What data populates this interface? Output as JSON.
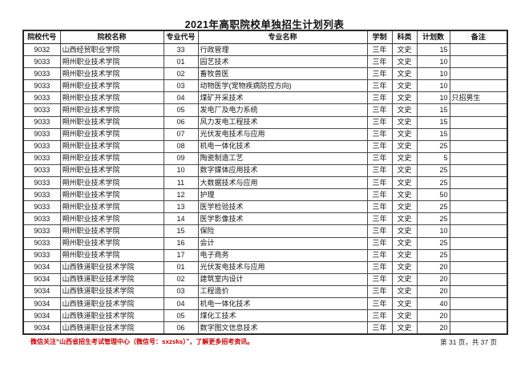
{
  "page": {
    "title": "2021年高职院校单独招生计划列表",
    "footer_note": "微信关注“山西省招生考试管理中心（微信号：sxzsks）”，了解更多招考资讯。",
    "page_indicator": "第 31 页，共 37 页",
    "accent_color": "#cc0000"
  },
  "table": {
    "columns": [
      "院校代号",
      "院校名称",
      "专业代号",
      "专业名称",
      "学制",
      "科类",
      "计划数",
      "备注"
    ],
    "rows": [
      [
        "9032",
        "山西经贸职业学院",
        "33",
        "行政管理",
        "三年",
        "文史",
        "15",
        ""
      ],
      [
        "9033",
        "朔州职业技术学院",
        "01",
        "园艺技术",
        "三年",
        "文史",
        "10",
        ""
      ],
      [
        "9033",
        "朔州职业技术学院",
        "02",
        "畜牧兽医",
        "三年",
        "文史",
        "10",
        ""
      ],
      [
        "9033",
        "朔州职业技术学院",
        "03",
        "动物医学(宠物疾病防控方向)",
        "三年",
        "文史",
        "10",
        ""
      ],
      [
        "9033",
        "朔州职业技术学院",
        "04",
        "煤矿开采技术",
        "三年",
        "文史",
        "10",
        "只招男生"
      ],
      [
        "9033",
        "朔州职业技术学院",
        "05",
        "发电厂及电力系统",
        "三年",
        "文史",
        "15",
        ""
      ],
      [
        "9033",
        "朔州职业技术学院",
        "06",
        "风力发电工程技术",
        "三年",
        "文史",
        "15",
        ""
      ],
      [
        "9033",
        "朔州职业技术学院",
        "07",
        "光伏发电技术与应用",
        "三年",
        "文史",
        "15",
        ""
      ],
      [
        "9033",
        "朔州职业技术学院",
        "08",
        "机电一体化技术",
        "三年",
        "文史",
        "25",
        ""
      ],
      [
        "9033",
        "朔州职业技术学院",
        "09",
        "陶瓷制造工艺",
        "三年",
        "文史",
        "5",
        ""
      ],
      [
        "9033",
        "朔州职业技术学院",
        "10",
        "数字媒体应用技术",
        "三年",
        "文史",
        "25",
        ""
      ],
      [
        "9033",
        "朔州职业技术学院",
        "11",
        "大数据技术与应用",
        "三年",
        "文史",
        "25",
        ""
      ],
      [
        "9033",
        "朔州职业技术学院",
        "12",
        "护理",
        "三年",
        "文史",
        "50",
        ""
      ],
      [
        "9033",
        "朔州职业技术学院",
        "13",
        "医学检验技术",
        "三年",
        "文史",
        "25",
        ""
      ],
      [
        "9033",
        "朔州职业技术学院",
        "14",
        "医学影像技术",
        "三年",
        "文史",
        "25",
        ""
      ],
      [
        "9033",
        "朔州职业技术学院",
        "15",
        "保险",
        "三年",
        "文史",
        "10",
        ""
      ],
      [
        "9033",
        "朔州职业技术学院",
        "16",
        "会计",
        "三年",
        "文史",
        "25",
        ""
      ],
      [
        "9033",
        "朔州职业技术学院",
        "17",
        "电子商务",
        "三年",
        "文史",
        "25",
        ""
      ],
      [
        "9034",
        "山西铁道职业技术学院",
        "01",
        "光伏发电技术与应用",
        "三年",
        "文史",
        "20",
        ""
      ],
      [
        "9034",
        "山西铁道职业技术学院",
        "02",
        "建筑室内设计",
        "三年",
        "文史",
        "20",
        ""
      ],
      [
        "9034",
        "山西铁道职业技术学院",
        "03",
        "工程造价",
        "三年",
        "文史",
        "20",
        ""
      ],
      [
        "9034",
        "山西铁道职业技术学院",
        "04",
        "机电一体化技术",
        "三年",
        "文史",
        "40",
        ""
      ],
      [
        "9034",
        "山西铁道职业技术学院",
        "05",
        "煤化工技术",
        "三年",
        "文史",
        "20",
        ""
      ],
      [
        "9034",
        "山西铁道职业技术学院",
        "06",
        "数字图文信息技术",
        "三年",
        "文史",
        "20",
        ""
      ]
    ]
  }
}
